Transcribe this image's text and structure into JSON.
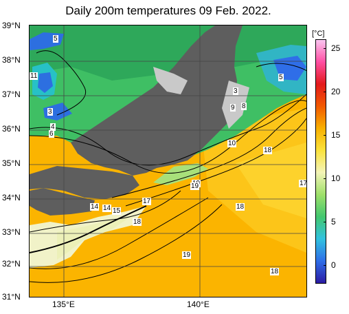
{
  "title": "Daily 200m temperatures 09 Feb. 2022.",
  "colorbar": {
    "unit": "[°C]",
    "ticks": [
      "25",
      "20",
      "15",
      "10",
      "5",
      "0"
    ],
    "tick_values": [
      25,
      20,
      15,
      10,
      5,
      0
    ],
    "range": [
      -2,
      26
    ],
    "colors": [
      "#2b1ba3",
      "#2f6ee8",
      "#31c2df",
      "#43c76e",
      "#9ee06a",
      "#f3f4b8",
      "#fbe23c",
      "#f8b000",
      "#f25a00",
      "#e31a1c",
      "#ff4fa3",
      "#f9c5f0"
    ]
  },
  "latitudes": [
    "39°N",
    "38°N",
    "37°N",
    "36°N",
    "35°N",
    "34°N",
    "33°N",
    "32°N",
    "31°N"
  ],
  "longitudes": [
    "135°E",
    "140°E"
  ],
  "contour_labels": [
    "5",
    "11",
    "3",
    "4",
    "6",
    "3",
    "9",
    "8",
    "5",
    "10",
    "18",
    "17",
    "19",
    "19",
    "18",
    "14",
    "14",
    "15",
    "17",
    "18",
    "19",
    "18"
  ]
}
